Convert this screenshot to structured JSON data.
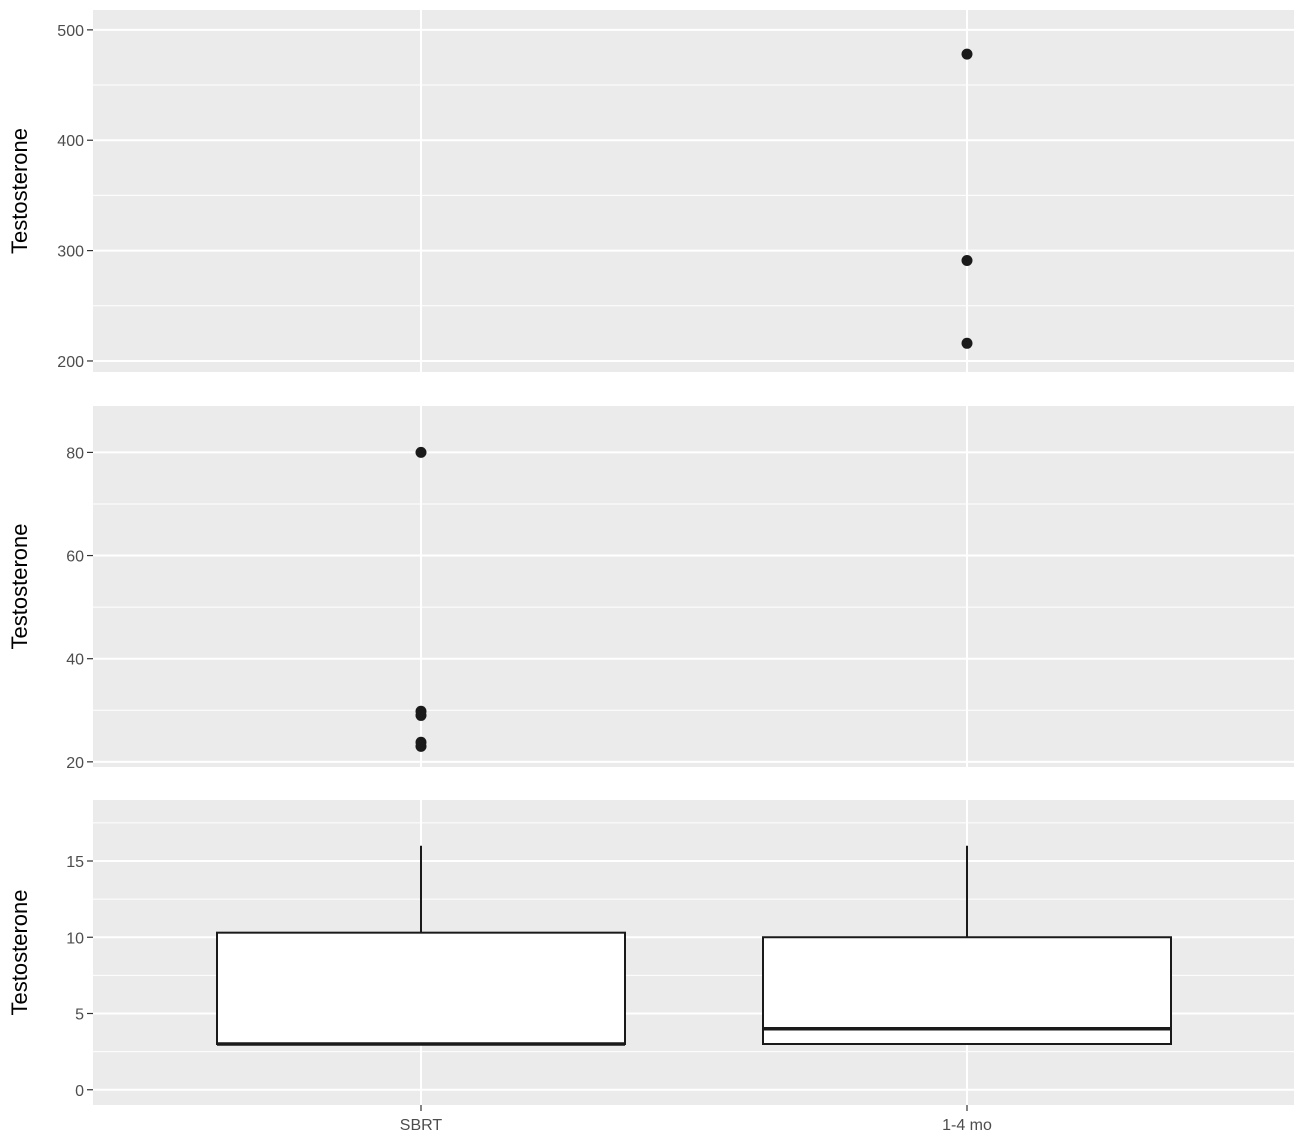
{
  "chart_data": {
    "type": "boxplot",
    "categories": [
      "SBRT",
      "1-4 mo"
    ],
    "ylabel": "Testosterone",
    "grid": true,
    "panels": [
      {
        "ylim": [
          190,
          518
        ],
        "yticks": [
          200,
          300,
          400,
          500
        ],
        "outliers": [
          {
            "category": "1-4 mo",
            "values": [
              478,
              291,
              216
            ]
          }
        ]
      },
      {
        "ylim": [
          19,
          89
        ],
        "yticks": [
          20,
          40,
          60,
          80
        ],
        "outliers": [
          {
            "category": "SBRT",
            "values": [
              80,
              29.8,
              29,
              23.8,
              23
            ]
          }
        ]
      },
      {
        "ylim": [
          -1,
          19
        ],
        "yticks": [
          0,
          5,
          10,
          15
        ],
        "boxes": [
          {
            "category": "SBRT",
            "q1": 3,
            "median": 3,
            "q3": 10.3,
            "whisker_low": 3,
            "whisker_high": 16
          },
          {
            "category": "1-4 mo",
            "q1": 3,
            "median": 4,
            "q3": 10,
            "whisker_low": 3,
            "whisker_high": 16
          }
        ]
      }
    ]
  },
  "colors": {
    "panel_background": "#ebebeb",
    "grid_line": "#ffffff",
    "box_fill": "#ffffff",
    "box_stroke": "#1a1a1a",
    "point": "#1a1a1a"
  }
}
